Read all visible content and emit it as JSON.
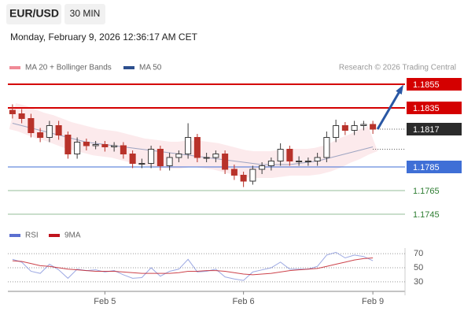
{
  "header": {
    "symbol": "EUR/USD",
    "interval": "30 MIN",
    "datetime": "Monday, February 9, 2026 12:36:17 AM CET",
    "copyright": "Research © 2026 Trading Central"
  },
  "chart_data": {
    "type": "candlestick",
    "categories": [
      null,
      null,
      null,
      null,
      null,
      null,
      null,
      null,
      null,
      null,
      "Feb 5",
      null,
      null,
      null,
      null,
      null,
      null,
      null,
      null,
      null,
      null,
      null,
      null,
      null,
      null,
      "Feb 6",
      null,
      null,
      null,
      null,
      null,
      null,
      null,
      null,
      null,
      null,
      null,
      null,
      null,
      "Feb 9"
    ],
    "open": [
      1.1833,
      1.183,
      1.1826,
      1.1814,
      1.181,
      1.182,
      1.1812,
      1.1796,
      1.1806,
      1.1803,
      1.1804,
      1.1802,
      1.1803,
      1.1796,
      1.1788,
      1.1788,
      1.18,
      1.1786,
      1.1793,
      1.1796,
      1.181,
      1.1793,
      1.1793,
      1.1796,
      1.1783,
      1.1778,
      1.1773,
      1.1783,
      1.1786,
      1.179,
      1.18,
      1.179,
      1.179,
      1.179,
      1.1793,
      1.181,
      1.182,
      1.1816,
      1.182,
      1.1821
    ],
    "high": [
      1.1838,
      1.1834,
      1.183,
      1.1818,
      1.1824,
      1.1824,
      1.1815,
      1.181,
      1.1809,
      1.1807,
      1.1807,
      1.1806,
      1.1806,
      1.1799,
      1.1792,
      1.1803,
      1.1803,
      1.1797,
      1.1799,
      1.1822,
      1.1813,
      1.1797,
      1.1799,
      1.1799,
      1.1787,
      1.1781,
      1.1786,
      1.1789,
      1.1793,
      1.1805,
      1.1803,
      1.1794,
      1.1793,
      1.1797,
      1.1815,
      1.1825,
      1.1823,
      1.1824,
      1.1824,
      1.1824
    ],
    "low": [
      1.1826,
      1.1822,
      1.181,
      1.1806,
      1.1806,
      1.1808,
      1.1792,
      1.1792,
      1.1799,
      1.18,
      1.1798,
      1.1798,
      1.1792,
      1.1784,
      1.1784,
      1.1784,
      1.1782,
      1.1782,
      1.1789,
      1.1792,
      1.1789,
      1.1789,
      1.1789,
      1.1779,
      1.1774,
      1.1768,
      1.177,
      1.1779,
      1.1782,
      1.1786,
      1.1786,
      1.1786,
      1.1786,
      1.1786,
      1.1789,
      1.1806,
      1.1812,
      1.1812,
      1.1816,
      1.1813
    ],
    "close": [
      1.183,
      1.1826,
      1.1814,
      1.181,
      1.182,
      1.1812,
      1.1796,
      1.1806,
      1.1803,
      1.1804,
      1.1802,
      1.1803,
      1.1796,
      1.1788,
      1.1788,
      1.18,
      1.1786,
      1.1793,
      1.1796,
      1.181,
      1.1793,
      1.1793,
      1.1796,
      1.1783,
      1.1778,
      1.1773,
      1.1783,
      1.1786,
      1.179,
      1.18,
      1.179,
      1.179,
      1.179,
      1.1793,
      1.181,
      1.182,
      1.1816,
      1.182,
      1.1821,
      1.1817
    ],
    "up_color": "#3b3b3b",
    "down_color": "#b8322a",
    "series": [
      {
        "name": "MA 20 + Bollinger Bands",
        "color": "#f08a96",
        "values": [
          1.1828,
          1.1826,
          1.1823,
          1.182,
          1.1818,
          1.1815,
          1.1812,
          1.181,
          1.1808,
          1.1806,
          1.1805,
          1.1804,
          1.1802,
          1.18,
          1.1798,
          1.1797,
          1.1796,
          1.1795,
          1.1795,
          1.1796,
          1.1796,
          1.1795,
          1.1794,
          1.1792,
          1.179,
          1.1788,
          1.1787,
          1.1787,
          1.1787,
          1.1788,
          1.1789,
          1.1789,
          1.1789,
          1.179,
          1.1792,
          1.1795,
          1.1799,
          1.1802,
          1.1806,
          1.1809
        ]
      },
      {
        "name": "MA 50",
        "color": "#2d4f8e",
        "values": [
          1.1822,
          1.182,
          1.1818,
          1.1816,
          1.1814,
          1.1812,
          1.181,
          1.1808,
          1.1806,
          1.1805,
          1.1804,
          1.1803,
          1.1802,
          1.1801,
          1.18,
          1.1799,
          1.1798,
          1.1797,
          1.1796,
          1.1795,
          1.1794,
          1.1793,
          1.1792,
          1.1791,
          1.179,
          1.1789,
          1.1788,
          1.1787,
          1.1787,
          1.1787,
          1.1787,
          1.1788,
          1.1789,
          1.179,
          1.1792,
          1.1794,
          1.1796,
          1.1798,
          1.18,
          1.1802
        ]
      }
    ],
    "ylim": [
      1.1733,
      1.1863
    ],
    "levels": [
      {
        "value": 1.1855,
        "color": "#d40000",
        "label_style": "box"
      },
      {
        "value": 1.1835,
        "color": "#d40000",
        "label_style": "box"
      },
      {
        "value": 1.1785,
        "color": "#3f6fd6",
        "label_style": "box"
      },
      {
        "value": 1.1765,
        "color": "#2e7d32",
        "label_style": "text"
      },
      {
        "value": 1.1745,
        "color": "#2e7d32",
        "label_style": "text"
      }
    ],
    "last_price": 1.1817,
    "last_price_color": "#2b2b2b",
    "pivot_dotted": 1.18,
    "rsi": {
      "series": [
        {
          "name": "RSI",
          "color": "#5b6fd0",
          "values": [
            62,
            58,
            45,
            42,
            55,
            47,
            35,
            48,
            46,
            47,
            44,
            46,
            40,
            35,
            36,
            50,
            38,
            45,
            48,
            62,
            44,
            45,
            48,
            37,
            34,
            32,
            44,
            47,
            50,
            58,
            48,
            48,
            48,
            52,
            68,
            72,
            64,
            68,
            66,
            60
          ]
        },
        {
          "name": "9MA",
          "color": "#c0141e",
          "values": [
            60,
            59,
            56,
            53,
            52,
            50,
            48,
            47,
            46,
            45,
            45,
            45,
            44,
            43,
            42,
            42,
            42,
            42,
            43,
            45,
            45,
            46,
            46,
            45,
            43,
            41,
            40,
            41,
            42,
            44,
            46,
            47,
            48,
            49,
            52,
            55,
            58,
            61,
            63,
            64
          ]
        }
      ],
      "ylim": [
        22,
        78
      ],
      "yticks": [
        30,
        50,
        70
      ]
    }
  }
}
